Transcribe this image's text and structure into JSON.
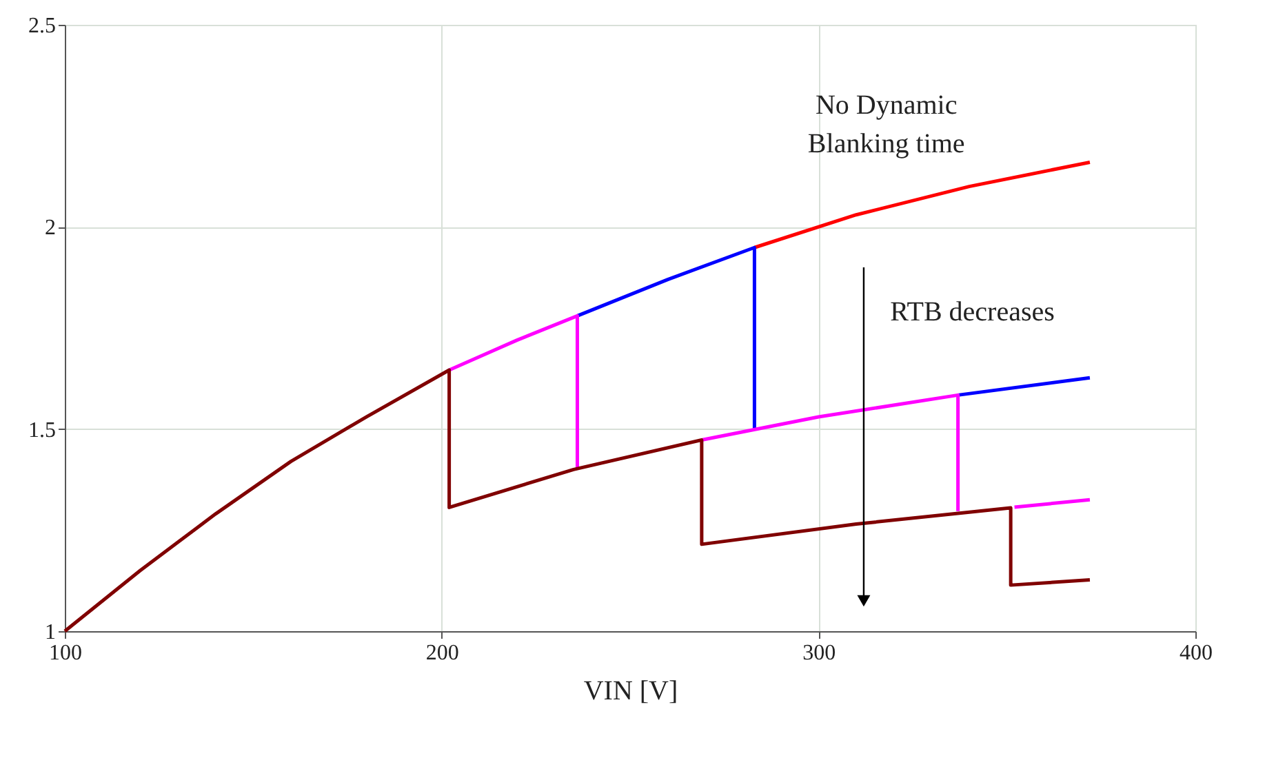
{
  "chart_data": {
    "type": "line",
    "xlabel": "VIN [V]",
    "xlim": [
      100,
      400
    ],
    "ylim": [
      1,
      2.5
    ],
    "xticks": [
      100,
      200,
      300,
      400
    ],
    "yticks": [
      1,
      1.5,
      2,
      2.5
    ],
    "grid": true,
    "marker": "none",
    "line_style": "solid",
    "annotations": [
      "No Dynamic\nBlanking time",
      "RTB decreases"
    ],
    "series": [
      {
        "color": "#ff0000",
        "x": [
          283,
          310,
          340,
          372
        ],
        "values": [
          1.949,
          2.03,
          2.1,
          2.16
        ]
      },
      {
        "color": "#0000ff",
        "x": [
          236,
          260,
          283,
          283
        ],
        "values": [
          1.78,
          1.87,
          1.949,
          1.502
        ]
      },
      {
        "color": "#0000ff",
        "x": [
          337,
          372
        ],
        "values": [
          1.584,
          1.627
        ]
      },
      {
        "color": "#ff00ff",
        "x": [
          202,
          220,
          236,
          236
        ],
        "values": [
          1.646,
          1.72,
          1.78,
          1.4
        ]
      },
      {
        "color": "#ff00ff",
        "x": [
          269,
          300,
          337,
          337
        ],
        "values": [
          1.473,
          1.53,
          1.584,
          1.297
        ]
      },
      {
        "color": "#ff00ff",
        "x": [
          352,
          372
        ],
        "values": [
          1.307,
          1.325
        ]
      },
      {
        "color": "#800000",
        "x": [
          100,
          120,
          140,
          160,
          180,
          202,
          202,
          235,
          269,
          269,
          310,
          351,
          351,
          372
        ],
        "values": [
          1,
          1.15,
          1.29,
          1.42,
          1.53,
          1.646,
          1.306,
          1.4,
          1.473,
          1.215,
          1.265,
          1.305,
          1.114,
          1.127
        ]
      }
    ]
  }
}
